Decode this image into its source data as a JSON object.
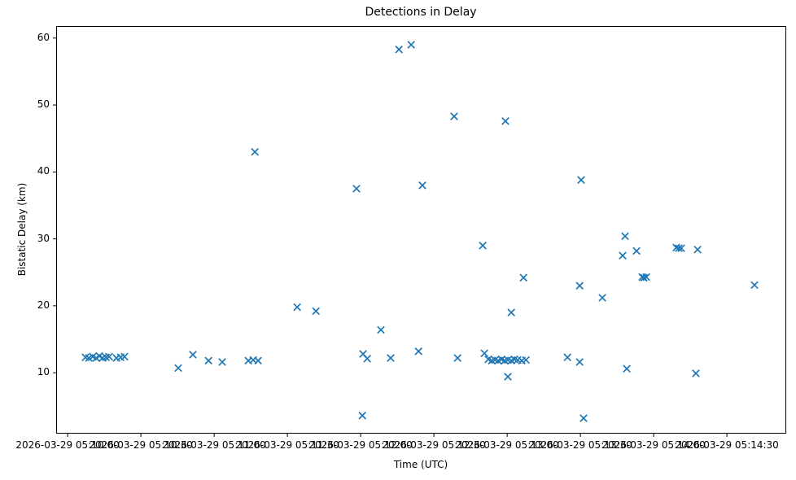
{
  "figure": {
    "title": "Detections in Delay",
    "xlabel": "Time (UTC)",
    "ylabel": "Bistatic Delay (km)"
  },
  "chart_data": {
    "type": "scatter",
    "title": "Detections in Delay",
    "xlabel": "Time (UTC)",
    "ylabel": "Bistatic Delay (km)",
    "marker": "x",
    "marker_color": "#1f77b4",
    "grid": false,
    "legend": "none",
    "x_unit": "seconds after 2026-03-29 05:10:00",
    "xlim": [
      -4.7,
      294.3
    ],
    "ylim": [
      0.9,
      61.8
    ],
    "x_ticks": [
      {
        "t": 0,
        "label": "2026-03-29 05:10:00"
      },
      {
        "t": 30,
        "label": "2026-03-29 05:10:30"
      },
      {
        "t": 60,
        "label": "2026-03-29 05:11:00"
      },
      {
        "t": 90,
        "label": "2026-03-29 05:11:30"
      },
      {
        "t": 120,
        "label": "2026-03-29 05:12:00"
      },
      {
        "t": 150,
        "label": "2026-03-29 05:12:30"
      },
      {
        "t": 180,
        "label": "2026-03-29 05:13:00"
      },
      {
        "t": 210,
        "label": "2026-03-29 05:13:30"
      },
      {
        "t": 240,
        "label": "2026-03-29 05:14:00"
      },
      {
        "t": 270,
        "label": "2026-03-29 05:14:30"
      }
    ],
    "y_ticks": [
      10,
      20,
      30,
      40,
      50,
      60
    ],
    "points": [
      [
        7.3,
        12.3
      ],
      [
        8.7,
        12.2
      ],
      [
        10.3,
        12.4
      ],
      [
        11.7,
        12.2
      ],
      [
        13,
        12.5
      ],
      [
        14.3,
        12.2
      ],
      [
        15.7,
        12.3
      ],
      [
        17,
        12.4
      ],
      [
        20,
        12.2
      ],
      [
        21.7,
        12.3
      ],
      [
        23.3,
        12.4
      ],
      [
        45.3,
        10.7
      ],
      [
        51.3,
        12.7
      ],
      [
        57.7,
        11.8
      ],
      [
        63.3,
        11.6
      ],
      [
        74,
        11.8
      ],
      [
        76,
        11.9
      ],
      [
        78,
        11.8
      ],
      [
        76.7,
        43.0
      ],
      [
        94,
        19.8
      ],
      [
        101.7,
        19.2
      ],
      [
        118.3,
        37.5
      ],
      [
        120.7,
        3.6
      ],
      [
        121,
        12.8
      ],
      [
        122.7,
        12.1
      ],
      [
        128.3,
        16.4
      ],
      [
        132.3,
        12.2
      ],
      [
        135.7,
        58.3
      ],
      [
        140.7,
        59.0
      ],
      [
        143.7,
        13.2
      ],
      [
        145.3,
        38.0
      ],
      [
        158.3,
        48.3
      ],
      [
        159.7,
        12.2
      ],
      [
        170,
        29.0
      ],
      [
        170.7,
        12.9
      ],
      [
        172.3,
        12.0
      ],
      [
        173.7,
        11.8
      ],
      [
        175,
        11.9
      ],
      [
        176.3,
        11.8
      ],
      [
        177.7,
        12.0
      ],
      [
        179,
        11.8
      ],
      [
        180.3,
        11.9
      ],
      [
        181.7,
        11.8
      ],
      [
        183,
        12.0
      ],
      [
        184.3,
        11.9
      ],
      [
        186,
        11.8
      ],
      [
        187.7,
        11.9
      ],
      [
        179.3,
        47.6
      ],
      [
        180.3,
        9.4
      ],
      [
        181.7,
        19.0
      ],
      [
        186.7,
        24.2
      ],
      [
        204.7,
        12.3
      ],
      [
        209.7,
        23.0
      ],
      [
        210.3,
        38.8
      ],
      [
        209.7,
        11.6
      ],
      [
        211.3,
        3.2
      ],
      [
        219,
        21.2
      ],
      [
        227.3,
        27.5
      ],
      [
        228.3,
        30.4
      ],
      [
        229,
        10.6
      ],
      [
        233,
        28.2
      ],
      [
        235.3,
        24.3
      ],
      [
        236,
        24.2
      ],
      [
        237,
        24.3
      ],
      [
        249.3,
        28.7
      ],
      [
        250.3,
        28.6
      ],
      [
        251.3,
        28.6
      ],
      [
        257.3,
        9.9
      ],
      [
        258,
        28.4
      ],
      [
        281.3,
        23.1
      ]
    ]
  }
}
